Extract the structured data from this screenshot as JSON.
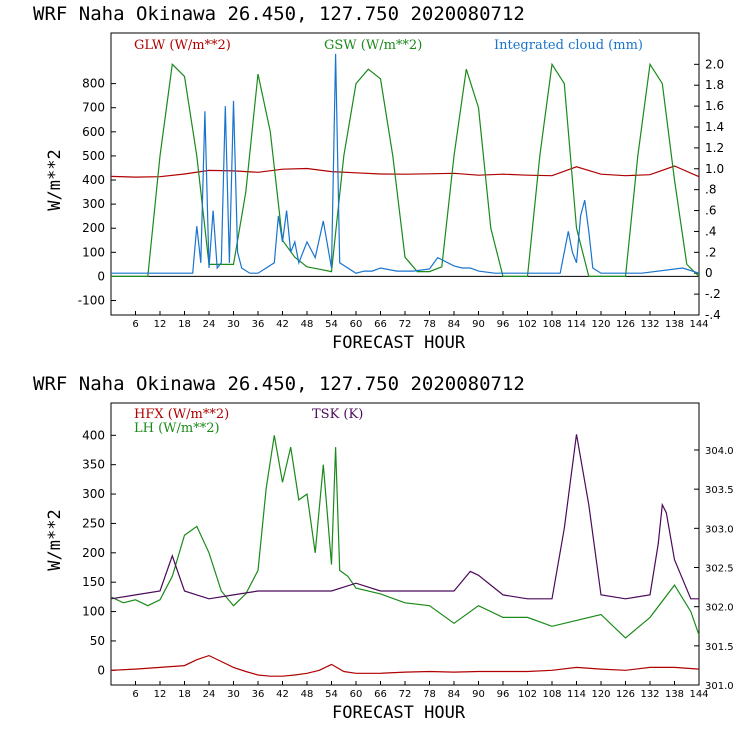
{
  "top": {
    "title": "WRF   Naha Okinawa   26.450, 127.750   2020080712",
    "xlabel": "FORECAST HOUR",
    "ylabel": "W/m**2",
    "yticks": [
      "800",
      "700",
      "600",
      "500",
      "400",
      "300",
      "200",
      "100",
      "0",
      "-100"
    ],
    "y2ticks": [
      "2.0",
      "1.8",
      "1.6",
      "1.4",
      "1.2",
      "1.0",
      ".8",
      ".6",
      ".4",
      ".2",
      "0",
      "-.2",
      "-.4"
    ],
    "xticks": [
      "6",
      "12",
      "18",
      "24",
      "30",
      "36",
      "42",
      "48",
      "54",
      "60",
      "66",
      "72",
      "78",
      "84",
      "90",
      "96",
      "102",
      "108",
      "114",
      "120",
      "126",
      "132",
      "138",
      "144"
    ],
    "legend": [
      "GLW (W/m**2)",
      "GSW (W/m**2)",
      "Integrated cloud (mm)"
    ]
  },
  "bottom": {
    "title": "WRF   Naha Okinawa   26.450, 127.750   2020080712",
    "xlabel": "FORECAST HOUR",
    "ylabel": "W/m**2",
    "yticks": [
      "400",
      "350",
      "300",
      "250",
      "200",
      "150",
      "100",
      "50",
      "0"
    ],
    "y2ticks": [
      "304.0",
      "303.5",
      "303.0",
      "302.5",
      "302.0",
      "301.5",
      "301.0"
    ],
    "xticks": [
      "6",
      "12",
      "18",
      "24",
      "30",
      "36",
      "42",
      "48",
      "54",
      "60",
      "66",
      "72",
      "78",
      "84",
      "90",
      "96",
      "102",
      "108",
      "114",
      "120",
      "126",
      "132",
      "138",
      "144"
    ],
    "legend": [
      "HFX (W/m**2)",
      "LH  (W/m**2)",
      "TSK (K)"
    ]
  },
  "colors": {
    "red": "#b00000",
    "green": "#1a8a1a",
    "blue": "#1874cd",
    "purple": "#4b0a5a"
  },
  "chart_data": [
    {
      "type": "line",
      "title": "WRF   Naha Okinawa   26.450, 127.750   2020080712",
      "xlabel": "FORECAST HOUR",
      "ylabel": "W/m**2",
      "xlim": [
        0,
        144
      ],
      "ylim": [
        -160,
        1010
      ],
      "y2lim": [
        -0.4,
        2.3
      ],
      "series": [
        {
          "name": "GLW (W/m**2)",
          "axis": "left",
          "x": [
            0,
            6,
            12,
            18,
            24,
            30,
            36,
            42,
            48,
            54,
            60,
            66,
            72,
            78,
            84,
            90,
            96,
            102,
            108,
            114,
            120,
            126,
            132,
            138,
            144
          ],
          "y": [
            415,
            412,
            414,
            425,
            440,
            438,
            432,
            445,
            448,
            435,
            430,
            425,
            424,
            426,
            428,
            420,
            424,
            420,
            418,
            455,
            424,
            418,
            422,
            458,
            414
          ]
        },
        {
          "name": "GSW (W/m**2)",
          "axis": "left",
          "x": [
            0,
            9,
            12,
            15,
            18,
            21,
            24,
            30,
            33,
            36,
            39,
            42,
            45,
            48,
            51,
            54,
            57,
            60,
            63,
            66,
            69,
            72,
            75,
            78,
            81,
            84,
            87,
            90,
            93,
            96,
            99,
            102,
            105,
            108,
            111,
            114,
            117,
            120,
            123,
            126,
            129,
            132,
            135,
            138,
            141,
            144
          ],
          "y": [
            0,
            0,
            500,
            880,
            830,
            500,
            50,
            50,
            350,
            840,
            600,
            150,
            80,
            40,
            30,
            20,
            500,
            800,
            860,
            820,
            500,
            80,
            20,
            20,
            40,
            500,
            860,
            700,
            200,
            0,
            0,
            0,
            500,
            880,
            800,
            200,
            0,
            0,
            0,
            0,
            500,
            880,
            800,
            400,
            50,
            0
          ]
        },
        {
          "name": "Integrated cloud (mm)",
          "axis": "right",
          "x": [
            0,
            20,
            21,
            22,
            23,
            24,
            25,
            26,
            27,
            28,
            29,
            30,
            31,
            32,
            34,
            36,
            38,
            40,
            41,
            42,
            43,
            44,
            45,
            46,
            48,
            50,
            52,
            54,
            55,
            56,
            58,
            60,
            62,
            64,
            66,
            70,
            74,
            78,
            80,
            84,
            86,
            88,
            90,
            94,
            100,
            110,
            112,
            113,
            114,
            115,
            116,
            117,
            118,
            120,
            130,
            140,
            144
          ],
          "y": [
            0,
            0,
            0.45,
            0.1,
            1.55,
            0.05,
            0.6,
            0.05,
            0.1,
            1.6,
            0.1,
            1.65,
            0.2,
            0.05,
            0,
            0,
            0.05,
            0.1,
            0.55,
            0.3,
            0.6,
            0.2,
            0.3,
            0.1,
            0.3,
            0.15,
            0.5,
            0.05,
            2.1,
            0.1,
            0.05,
            0,
            0.02,
            0.02,
            0.05,
            0.02,
            0.02,
            0.04,
            0.15,
            0.07,
            0.05,
            0.05,
            0.02,
            0,
            0,
            0,
            0.4,
            0.2,
            0.1,
            0.55,
            0.7,
            0.4,
            0.05,
            0,
            0,
            0.05,
            0
          ]
        }
      ]
    },
    {
      "type": "line",
      "title": "WRF   Naha Okinawa   26.450, 127.750   2020080712",
      "xlabel": "FORECAST HOUR",
      "ylabel": "W/m**2",
      "xlim": [
        0,
        144
      ],
      "ylim": [
        -25,
        455
      ],
      "y2lim": [
        301.0,
        304.6
      ],
      "series": [
        {
          "name": "HFX (W/m**2)",
          "axis": "left",
          "x": [
            0,
            6,
            12,
            18,
            21,
            24,
            27,
            30,
            33,
            36,
            39,
            42,
            45,
            48,
            51,
            54,
            57,
            60,
            66,
            72,
            78,
            84,
            90,
            96,
            102,
            108,
            114,
            120,
            126,
            132,
            138,
            144
          ],
          "y": [
            0,
            2,
            5,
            8,
            18,
            25,
            15,
            5,
            -2,
            -8,
            -10,
            -10,
            -8,
            -5,
            0,
            10,
            -2,
            -5,
            -5,
            -3,
            -2,
            -3,
            -2,
            -2,
            -2,
            0,
            5,
            2,
            0,
            5,
            5,
            2
          ]
        },
        {
          "name": "LH  (W/m**2)",
          "axis": "left",
          "x": [
            0,
            3,
            6,
            9,
            12,
            15,
            18,
            21,
            24,
            27,
            30,
            33,
            36,
            38,
            40,
            42,
            44,
            46,
            48,
            50,
            52,
            54,
            55,
            56,
            58,
            60,
            66,
            72,
            78,
            84,
            90,
            96,
            102,
            108,
            114,
            120,
            126,
            132,
            138,
            142,
            144
          ],
          "y": [
            125,
            115,
            120,
            110,
            120,
            160,
            230,
            245,
            200,
            135,
            110,
            130,
            170,
            310,
            400,
            320,
            380,
            290,
            300,
            200,
            350,
            180,
            380,
            170,
            160,
            140,
            130,
            115,
            110,
            80,
            110,
            90,
            90,
            75,
            85,
            95,
            55,
            90,
            145,
            100,
            60
          ]
        },
        {
          "name": "TSK (K)",
          "axis": "right",
          "x": [
            0,
            6,
            12,
            14,
            15,
            16,
            18,
            21,
            24,
            30,
            36,
            42,
            48,
            54,
            60,
            66,
            72,
            78,
            84,
            88,
            90,
            96,
            102,
            108,
            111,
            114,
            117,
            120,
            126,
            132,
            134,
            135,
            136,
            138,
            142,
            144
          ],
          "y": [
            302.1,
            302.15,
            302.2,
            302.5,
            302.65,
            302.5,
            302.2,
            302.15,
            302.1,
            302.15,
            302.2,
            302.2,
            302.2,
            302.2,
            302.3,
            302.2,
            302.2,
            302.2,
            302.2,
            302.45,
            302.4,
            302.15,
            302.1,
            302.1,
            303.0,
            304.2,
            303.3,
            302.15,
            302.1,
            302.15,
            302.8,
            303.3,
            303.2,
            302.6,
            302.1,
            302.1
          ]
        }
      ]
    }
  ]
}
